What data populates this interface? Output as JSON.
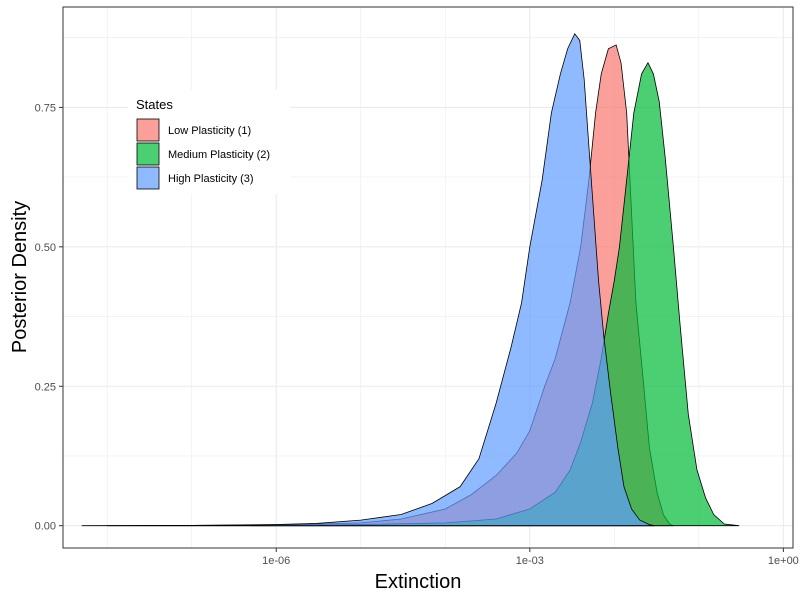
{
  "chart_data": {
    "type": "area",
    "subtype": "density",
    "title": "",
    "xlabel": "Extinction",
    "ylabel": "Posterior Density",
    "x_scale": "log10",
    "xlim": [
      3e-09,
      1.3
    ],
    "ylim": [
      -0.04,
      0.93
    ],
    "grid": true,
    "x_ticks": [
      {
        "value": 1e-06,
        "label": "1e-06"
      },
      {
        "value": 0.001,
        "label": "1e-03"
      },
      {
        "value": 1,
        "label": "1e+00"
      }
    ],
    "y_ticks": [
      {
        "value": 0,
        "label": "0.00"
      },
      {
        "value": 0.25,
        "label": "0.25"
      },
      {
        "value": 0.5,
        "label": "0.50"
      },
      {
        "value": 0.75,
        "label": "0.75"
      }
    ],
    "legend": {
      "title": "States",
      "placement": "top-left inside",
      "entries": [
        {
          "label": "Low Plasticity (1)",
          "color": "#F8766D"
        },
        {
          "label": "Medium Plasticity (2)",
          "color": "#00BA38"
        },
        {
          "label": "High Plasticity (3)",
          "color": "#619CFF"
        }
      ]
    },
    "series": [
      {
        "name": "Low Plasticity (1)",
        "color": "#F8766D",
        "points": [
          [
            1e-08,
            0
          ],
          [
            1e-06,
            0.001
          ],
          [
            1e-05,
            0.005
          ],
          [
            3e-05,
            0.012
          ],
          [
            0.0001,
            0.03
          ],
          [
            0.0002,
            0.055
          ],
          [
            0.0004,
            0.09
          ],
          [
            0.0007,
            0.13
          ],
          [
            0.001,
            0.17
          ],
          [
            0.0015,
            0.25
          ],
          [
            0.002,
            0.3
          ],
          [
            0.003,
            0.4
          ],
          [
            0.004,
            0.5
          ],
          [
            0.005,
            0.62
          ],
          [
            0.006,
            0.74
          ],
          [
            0.007,
            0.81
          ],
          [
            0.0085,
            0.855
          ],
          [
            0.0105,
            0.862
          ],
          [
            0.012,
            0.83
          ],
          [
            0.014,
            0.74
          ],
          [
            0.016,
            0.56
          ],
          [
            0.018,
            0.4
          ],
          [
            0.022,
            0.26
          ],
          [
            0.026,
            0.14
          ],
          [
            0.032,
            0.06
          ],
          [
            0.038,
            0.02
          ],
          [
            0.045,
            0.003
          ],
          [
            0.05,
            0
          ]
        ]
      },
      {
        "name": "Medium Plasticity (2)",
        "color": "#00BA38",
        "points": [
          [
            5e-07,
            0
          ],
          [
            1e-05,
            0.002
          ],
          [
            0.0001,
            0.005
          ],
          [
            0.0004,
            0.012
          ],
          [
            0.001,
            0.03
          ],
          [
            0.002,
            0.06
          ],
          [
            0.003,
            0.1
          ],
          [
            0.004,
            0.15
          ],
          [
            0.0055,
            0.22
          ],
          [
            0.007,
            0.3
          ],
          [
            0.0085,
            0.38
          ],
          [
            0.01,
            0.44
          ],
          [
            0.0115,
            0.5
          ],
          [
            0.014,
            0.62
          ],
          [
            0.017,
            0.74
          ],
          [
            0.021,
            0.81
          ],
          [
            0.025,
            0.83
          ],
          [
            0.029,
            0.81
          ],
          [
            0.034,
            0.76
          ],
          [
            0.04,
            0.66
          ],
          [
            0.05,
            0.5
          ],
          [
            0.06,
            0.36
          ],
          [
            0.075,
            0.2
          ],
          [
            0.095,
            0.1
          ],
          [
            0.12,
            0.05
          ],
          [
            0.15,
            0.02
          ],
          [
            0.2,
            0.003
          ],
          [
            0.3,
            0
          ]
        ]
      },
      {
        "name": "High Plasticity (3)",
        "color": "#619CFF",
        "points": [
          [
            5e-09,
            0
          ],
          [
            1e-07,
            0.0005
          ],
          [
            1e-06,
            0.002
          ],
          [
            3e-06,
            0.004
          ],
          [
            1e-05,
            0.01
          ],
          [
            3e-05,
            0.02
          ],
          [
            7e-05,
            0.04
          ],
          [
            0.00015,
            0.07
          ],
          [
            0.00025,
            0.12
          ],
          [
            0.0004,
            0.22
          ],
          [
            0.0006,
            0.32
          ],
          [
            0.0008,
            0.4
          ],
          [
            0.001,
            0.5
          ],
          [
            0.0014,
            0.62
          ],
          [
            0.0018,
            0.74
          ],
          [
            0.0023,
            0.81
          ],
          [
            0.0028,
            0.855
          ],
          [
            0.0034,
            0.882
          ],
          [
            0.0039,
            0.87
          ],
          [
            0.0044,
            0.8
          ],
          [
            0.005,
            0.68
          ],
          [
            0.0057,
            0.56
          ],
          [
            0.0065,
            0.44
          ],
          [
            0.0075,
            0.34
          ],
          [
            0.009,
            0.24
          ],
          [
            0.011,
            0.14
          ],
          [
            0.013,
            0.07
          ],
          [
            0.016,
            0.03
          ],
          [
            0.02,
            0.01
          ],
          [
            0.026,
            0.002
          ],
          [
            0.03,
            0
          ]
        ]
      }
    ]
  }
}
